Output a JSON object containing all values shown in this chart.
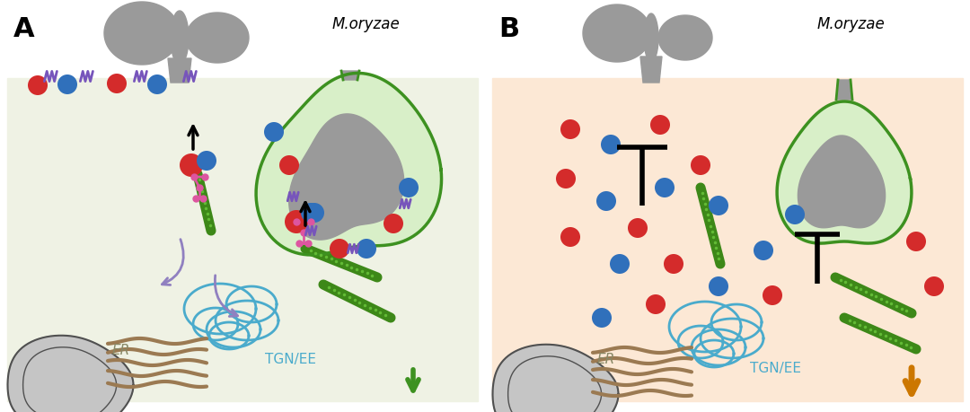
{
  "panel_A_bg": "#eff2e4",
  "panel_B_bg": "#fce8d5",
  "fungus_color": "#9a9a9a",
  "green_line": "#3d9120",
  "green_fill_light": "#d8efc8",
  "red_vesicle": "#d42b2b",
  "blue_vesicle": "#3070bb",
  "pink_connector": "#dd55a0",
  "purple_marker": "#7755bb",
  "actin_color": "#3d8818",
  "actin_stripe": "#62bb35",
  "ER_color": "#9b7a52",
  "TGN_color": "#4aabcc",
  "nucleus_outer": "#b8b8b8",
  "nucleus_inner": "#666666",
  "arrow_green": "#3d9120",
  "arrow_orange": "#cc7700",
  "purple_arrow": "#9080c0",
  "label_A": "A",
  "label_B": "B",
  "moryzae_text": "M.oryzae",
  "ER_text": "ER",
  "TGN_text": "TGN/EE"
}
